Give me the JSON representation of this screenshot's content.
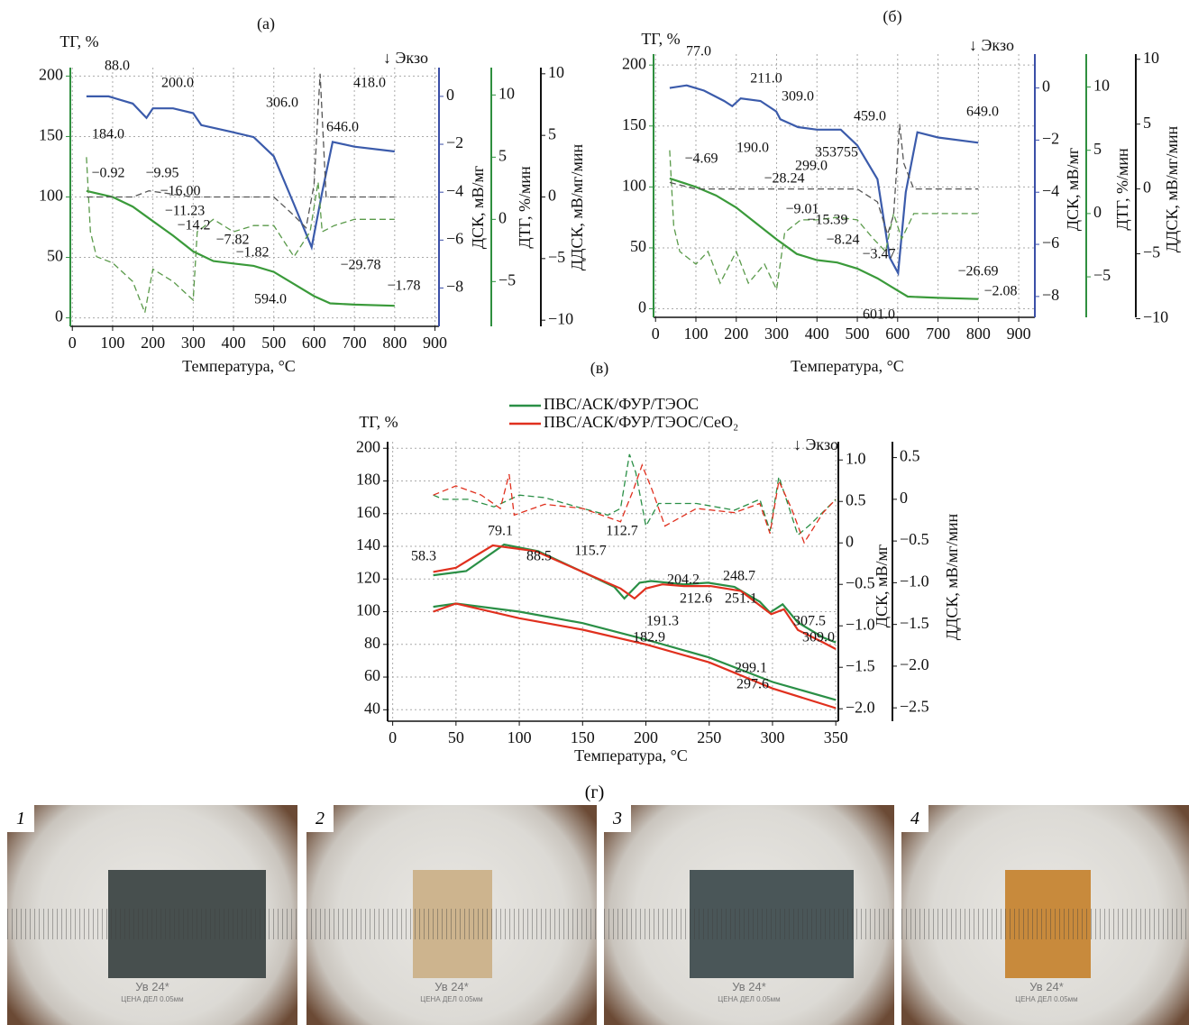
{
  "chart_data": [
    {
      "type": "line",
      "panel_label": "(а)",
      "exo_label": "↓ Экзо",
      "xlabel": "Температура, °C",
      "ylabel": "ТГ, %",
      "y2label": "ДСК, мВ/мг",
      "y3label": "ДТГ, %/мин",
      "y4label": "ДДСК, мВ/мг/мин",
      "grid": true,
      "xlim": [
        -5,
        910
      ],
      "xticks": [
        0,
        100,
        200,
        300,
        400,
        500,
        600,
        700,
        800,
        900
      ],
      "ylim": [
        -7,
        207
      ],
      "yticks": [
        0,
        50,
        100,
        150,
        200
      ],
      "ycolor": "#2f8f3f",
      "y2lim": [
        -9.6,
        1.2
      ],
      "y2ticks": [
        0,
        {
          "value": -2,
          "label": "−2"
        },
        {
          "value": -4,
          "label": "−4"
        },
        {
          "value": -6,
          "label": "−6"
        },
        {
          "value": -8,
          "label": "−8"
        }
      ],
      "y2color": "#3b4fa8",
      "y3lim": [
        -8.6,
        12.2
      ],
      "y3ticks": [
        10,
        5,
        0,
        {
          "value": -5,
          "label": "−5"
        }
      ],
      "y3color": "#2f8f3f",
      "y4lim": [
        -10.5,
        10.5
      ],
      "y4ticks": [
        10,
        5,
        0,
        {
          "value": -5,
          "label": "−5"
        },
        {
          "value": -10,
          "label": "−10"
        }
      ],
      "y4color": "#111111",
      "series": [
        {
          "axis": "y",
          "color": "#3a9a3a",
          "dashed": false,
          "x": [
            35,
            100,
            150,
            200,
            250,
            300,
            350,
            400,
            450,
            500,
            550,
            600,
            640,
            700,
            800
          ],
          "values": [
            105,
            100,
            92,
            80,
            68,
            55,
            47,
            45,
            43,
            38,
            28,
            18,
            12,
            11,
            10
          ]
        },
        {
          "axis": "y2",
          "color": "#3b5bab",
          "dashed": false,
          "x": [
            35,
            90,
            150,
            184,
            200,
            250,
            300,
            320,
            400,
            450,
            500,
            550,
            594,
            620,
            646,
            700,
            800
          ],
          "values": [
            0,
            0,
            -0.3,
            -0.9,
            -0.5,
            -0.5,
            -0.7,
            -1.2,
            -1.5,
            -1.7,
            -2.5,
            -4.5,
            -6.3,
            -4,
            -1.9,
            -2.1,
            -2.3
          ]
        },
        {
          "axis": "y3",
          "color": "#5a9a4a",
          "dashed": true,
          "x": [
            35,
            45,
            60,
            100,
            150,
            180,
            200,
            250,
            300,
            310,
            350,
            400,
            450,
            500,
            550,
            590,
            610,
            620,
            650,
            700,
            800
          ],
          "values": [
            5,
            -1,
            -3,
            -3.5,
            -5,
            -7.5,
            -4,
            -5,
            -6.5,
            -1,
            0,
            -1,
            -0.5,
            -0.5,
            -3,
            -1,
            3,
            -1,
            -0.5,
            0,
            0
          ]
        },
        {
          "axis": "y4",
          "color": "#555555",
          "dashed": true,
          "x": [
            35,
            150,
            190,
            300,
            500,
            550,
            580,
            600,
            615,
            630,
            800
          ],
          "values": [
            0,
            0,
            0.5,
            0,
            0,
            -1.5,
            -2.5,
            1,
            10,
            0,
            0
          ]
        }
      ],
      "annotations": [
        {
          "text": "88.0",
          "color": "#4b3fa0"
        },
        {
          "text": "200.0",
          "color": "#4b3fa0"
        },
        {
          "text": "306.0",
          "color": "#4b3fa0"
        },
        {
          "text": "418.0",
          "color": "#4b3fa0"
        },
        {
          "text": "646.0",
          "color": "#4b3fa0"
        },
        {
          "text": "594.0",
          "color": "#4b3fa0"
        },
        {
          "text": "184.0",
          "color": "#111111"
        },
        {
          "text": "−0.92",
          "color": "#1f9a4a"
        },
        {
          "text": "−9.95",
          "color": "#1f9a4a"
        },
        {
          "text": "−16.00",
          "color": "#1f9a4a"
        },
        {
          "text": "−11.23",
          "color": "#1f9a4a"
        },
        {
          "text": "−14.2",
          "color": "#1f9a4a"
        },
        {
          "text": "−7.82",
          "color": "#1f9a4a"
        },
        {
          "text": "−1.82",
          "color": "#1f9a4a"
        },
        {
          "text": "−29.78",
          "color": "#1f9a4a"
        },
        {
          "text": "−1.78",
          "color": "#1f9a4a"
        }
      ]
    },
    {
      "type": "line",
      "panel_label": "(б)",
      "exo_label": "↓ Экзо",
      "xlabel": "Температура, °C",
      "ylabel": "ТГ, %",
      "y2label": "ДСК, мВ/мг",
      "y3label": "ДТГ, %/мин",
      "y4label": "ДДСК, мВ/мг/мин",
      "grid": true,
      "xlim": [
        -5,
        940
      ],
      "xticks": [
        0,
        100,
        200,
        300,
        400,
        500,
        600,
        700,
        800,
        900
      ],
      "ylim": [
        -7,
        209
      ],
      "yticks": [
        0,
        50,
        100,
        150,
        200
      ],
      "ycolor": "#2f8f3f",
      "y2lim": [
        -8.8,
        1.3
      ],
      "y2ticks": [
        0,
        {
          "value": -2,
          "label": "−2"
        },
        {
          "value": -4,
          "label": "−4"
        },
        {
          "value": -6,
          "label": "−6"
        },
        {
          "value": -8,
          "label": "−8"
        }
      ],
      "y2color": "#3b4fa8",
      "y3lim": [
        -8.2,
        12.6
      ],
      "y3ticks": [
        10,
        5,
        0,
        {
          "value": -5,
          "label": "−5"
        }
      ],
      "y3color": "#2f8f3f",
      "y4lim": [
        -9.9,
        10.4
      ],
      "y4ticks": [
        10,
        5,
        0,
        {
          "value": -5,
          "label": "−5"
        },
        {
          "value": -10,
          "label": "−10"
        }
      ],
      "y4color": "#111111",
      "series": [
        {
          "axis": "y",
          "color": "#3a9a3a",
          "dashed": false,
          "x": [
            35,
            100,
            150,
            200,
            250,
            300,
            350,
            400,
            450,
            500,
            550,
            600,
            625,
            700,
            800
          ],
          "values": [
            107,
            100,
            93,
            83,
            70,
            57,
            45,
            40,
            38,
            33,
            25,
            15,
            10,
            9,
            8
          ]
        },
        {
          "axis": "y2",
          "color": "#3b5bab",
          "dashed": false,
          "x": [
            35,
            77,
            120,
            170,
            190,
            211,
            260,
            299,
            309,
            353,
            400,
            459,
            500,
            550,
            580,
            601,
            620,
            649,
            700,
            800
          ],
          "values": [
            0,
            0.1,
            -0.1,
            -0.5,
            -0.7,
            -0.4,
            -0.5,
            -0.9,
            -1.2,
            -1.5,
            -1.6,
            -1.6,
            -2.2,
            -3.5,
            -6.5,
            -7.1,
            -4,
            -1.7,
            -1.9,
            -2.1
          ]
        },
        {
          "axis": "y3",
          "color": "#5a9a4a",
          "dashed": true,
          "x": [
            35,
            45,
            60,
            100,
            130,
            160,
            200,
            230,
            270,
            300,
            320,
            360,
            400,
            450,
            500,
            540,
            570,
            590,
            610,
            640,
            700,
            800
          ],
          "values": [
            5,
            -1,
            -3,
            -4,
            -3,
            -5.5,
            -3,
            -5.5,
            -4,
            -6,
            -1.5,
            -0.5,
            -0.5,
            -0.3,
            -0.5,
            -2,
            -3,
            0,
            -2,
            0,
            0,
            0
          ]
        },
        {
          "axis": "y4",
          "color": "#555555",
          "dashed": true,
          "x": [
            35,
            100,
            200,
            300,
            500,
            550,
            575,
            590,
            605,
            615,
            640,
            800
          ],
          "values": [
            0.5,
            0,
            0,
            0,
            0,
            -1,
            -3.5,
            -2,
            5,
            2,
            0,
            0
          ]
        }
      ],
      "annotations": [
        {
          "text": "77.0",
          "color": "#4b3fa0"
        },
        {
          "text": "211.0",
          "color": "#4b3fa0"
        },
        {
          "text": "309.0",
          "color": "#4b3fa0"
        },
        {
          "text": "459.0",
          "color": "#4b3fa0"
        },
        {
          "text": "649.0",
          "color": "#4b3fa0"
        },
        {
          "text": "190.0",
          "color": "#4b3fa0"
        },
        {
          "text": "299.0",
          "color": "#4b3fa0"
        },
        {
          "text": "353755",
          "color": "#4b3fa0"
        },
        {
          "text": "601.0",
          "color": "#4b3fa0"
        },
        {
          "text": "−4.69",
          "color": "#1f9a4a"
        },
        {
          "text": "−28.24",
          "color": "#1f9a4a"
        },
        {
          "text": "−9.01",
          "color": "#1f9a4a"
        },
        {
          "text": "−15.39",
          "color": "#1f9a4a"
        },
        {
          "text": "−8.24",
          "color": "#1f9a4a"
        },
        {
          "text": "−3.47",
          "color": "#1f9a4a"
        },
        {
          "text": "−26.69",
          "color": "#1f9a4a"
        },
        {
          "text": "−2.08",
          "color": "#1f9a4a"
        }
      ]
    },
    {
      "type": "line",
      "panel_label": "(в)",
      "exo_label": "↓ Экзо",
      "xlabel": "Температура, °C",
      "ylabel": "ТГ, %",
      "y2label": "ДСК, мВ/мг",
      "y3label": "ДДСК, мВ/мг/мин",
      "grid": true,
      "xlim": [
        -4,
        352
      ],
      "xticks": [
        0,
        50,
        100,
        150,
        200,
        250,
        300,
        350
      ],
      "ylim": [
        33,
        204
      ],
      "yticks": [
        40,
        60,
        80,
        100,
        120,
        140,
        160,
        180,
        200
      ],
      "ycolor": "#111111",
      "y2lim": [
        -2.15,
        1.22
      ],
      "y2ticks": [
        {
          "value": 1,
          "label": "1.0"
        },
        0.5,
        0,
        {
          "value": -0.5,
          "label": "−0.5"
        },
        {
          "value": -1,
          "label": "−1.0"
        },
        {
          "value": -1.5,
          "label": "−1.5"
        },
        {
          "value": -2,
          "label": "−2.0"
        }
      ],
      "y2color": "#111111",
      "y3lim": [
        -2.66,
        0.69
      ],
      "y3ticks": [
        0.5,
        0,
        {
          "value": -0.5,
          "label": "−0.5"
        },
        {
          "value": -1,
          "label": "−1.0"
        },
        {
          "value": -1.5,
          "label": "−1.5"
        },
        {
          "value": -2,
          "label": "−2.0"
        },
        {
          "value": -2.5,
          "label": "−2.5"
        }
      ],
      "y3color": "#111111",
      "series": [
        {
          "name": "ПВС/АСК/ФУР/ТЭОС",
          "axis": "y",
          "color": "#2a8f46",
          "dashed": false,
          "x": [
            32,
            50,
            100,
            150,
            200,
            250,
            300,
            350
          ],
          "values": [
            103,
            105,
            100,
            93,
            83,
            72,
            57,
            46
          ]
        },
        {
          "name": "ПВС/АСК/ФУР/ТЭОС/CeO₂",
          "axis": "y",
          "color": "#e0301e",
          "dashed": false,
          "x": [
            32,
            50,
            100,
            150,
            200,
            250,
            300,
            350
          ],
          "values": [
            100,
            105,
            96,
            89,
            80,
            69,
            53,
            41
          ]
        },
        {
          "axis": "y2",
          "color": "#2a8f46",
          "dashed": false,
          "x": [
            32,
            58,
            88,
            115,
            150,
            175,
            183,
            195,
            204,
            230,
            249,
            270,
            290,
            298,
            308,
            320,
            340,
            350
          ],
          "values": [
            -0.39,
            -0.34,
            -0.02,
            -0.1,
            -0.35,
            -0.53,
            -0.67,
            -0.48,
            -0.46,
            -0.5,
            -0.48,
            -0.53,
            -0.71,
            -0.84,
            -0.74,
            -0.96,
            -1.14,
            -1.2
          ]
        },
        {
          "axis": "y2",
          "color": "#e0301e",
          "dashed": false,
          "x": [
            32,
            50,
            79,
            113,
            150,
            180,
            191,
            200,
            213,
            230,
            251,
            275,
            299,
            309,
            320,
            340,
            350
          ],
          "values": [
            -0.35,
            -0.3,
            -0.03,
            -0.1,
            -0.35,
            -0.55,
            -0.67,
            -0.55,
            -0.5,
            -0.52,
            -0.52,
            -0.58,
            -0.86,
            -0.8,
            -1.05,
            -1.2,
            -1.28
          ]
        },
        {
          "axis": "y3",
          "color": "#2a8f46",
          "dashed": true,
          "x": [
            32,
            40,
            60,
            80,
            100,
            120,
            150,
            170,
            180,
            187,
            192,
            200,
            210,
            240,
            270,
            290,
            298,
            305,
            312,
            320,
            330,
            350
          ],
          "values": [
            0.05,
            0,
            0,
            -0.09,
            0.05,
            0.02,
            -0.11,
            -0.19,
            -0.11,
            0.54,
            0.32,
            -0.32,
            -0.05,
            -0.05,
            -0.13,
            0,
            -0.38,
            0.27,
            -0.05,
            -0.43,
            -0.3,
            0
          ]
        },
        {
          "axis": "y3",
          "color": "#e0301e",
          "dashed": true,
          "x": [
            32,
            50,
            70,
            85,
            92,
            96,
            120,
            150,
            180,
            190,
            197,
            205,
            215,
            240,
            270,
            290,
            298,
            305,
            315,
            325,
            340,
            350
          ],
          "values": [
            0.05,
            0.16,
            0.05,
            -0.11,
            0.3,
            -0.19,
            -0.06,
            -0.11,
            -0.27,
            0.11,
            0.41,
            0.11,
            -0.32,
            -0.11,
            -0.16,
            -0.05,
            -0.41,
            0.22,
            -0.11,
            -0.52,
            -0.16,
            0
          ]
        }
      ],
      "annotations": [
        {
          "text": "58.3",
          "color": "#1f9a4a"
        },
        {
          "text": "88.5",
          "color": "#1f9a4a"
        },
        {
          "text": "115.7",
          "color": "#1f9a4a"
        },
        {
          "text": "204.2",
          "color": "#1f9a4a"
        },
        {
          "text": "248.7",
          "color": "#1f9a4a"
        },
        {
          "text": "182.9",
          "color": "#1f9a4a"
        },
        {
          "text": "307.5",
          "color": "#1f9a4a"
        },
        {
          "text": "297.6",
          "color": "#1f9a4a"
        },
        {
          "text": "79.1",
          "color": "#e0301e"
        },
        {
          "text": "112.7",
          "color": "#e0301e"
        },
        {
          "text": "212.6",
          "color": "#e0301e"
        },
        {
          "text": "251.1",
          "color": "#e0301e"
        },
        {
          "text": "191.3",
          "color": "#e0301e"
        },
        {
          "text": "309.0",
          "color": "#e0301e"
        },
        {
          "text": "299.1",
          "color": "#e0301e"
        }
      ]
    }
  ],
  "photos": {
    "label": "(г)",
    "items": [
      {
        "number": "1",
        "magnification": "Ув 24*",
        "scale": "ЦЕНА ДЕЛ 0.05мм"
      },
      {
        "number": "2",
        "magnification": "Ув 24*",
        "scale": "ЦЕНА ДЕЛ 0.05мм"
      },
      {
        "number": "3",
        "magnification": "Ув 24*",
        "scale": "ЦЕНА ДЕЛ 0.05мм"
      },
      {
        "number": "4",
        "magnification": "Ув 24*",
        "scale": "ЦЕНА ДЕЛ 0.05мм"
      }
    ]
  }
}
